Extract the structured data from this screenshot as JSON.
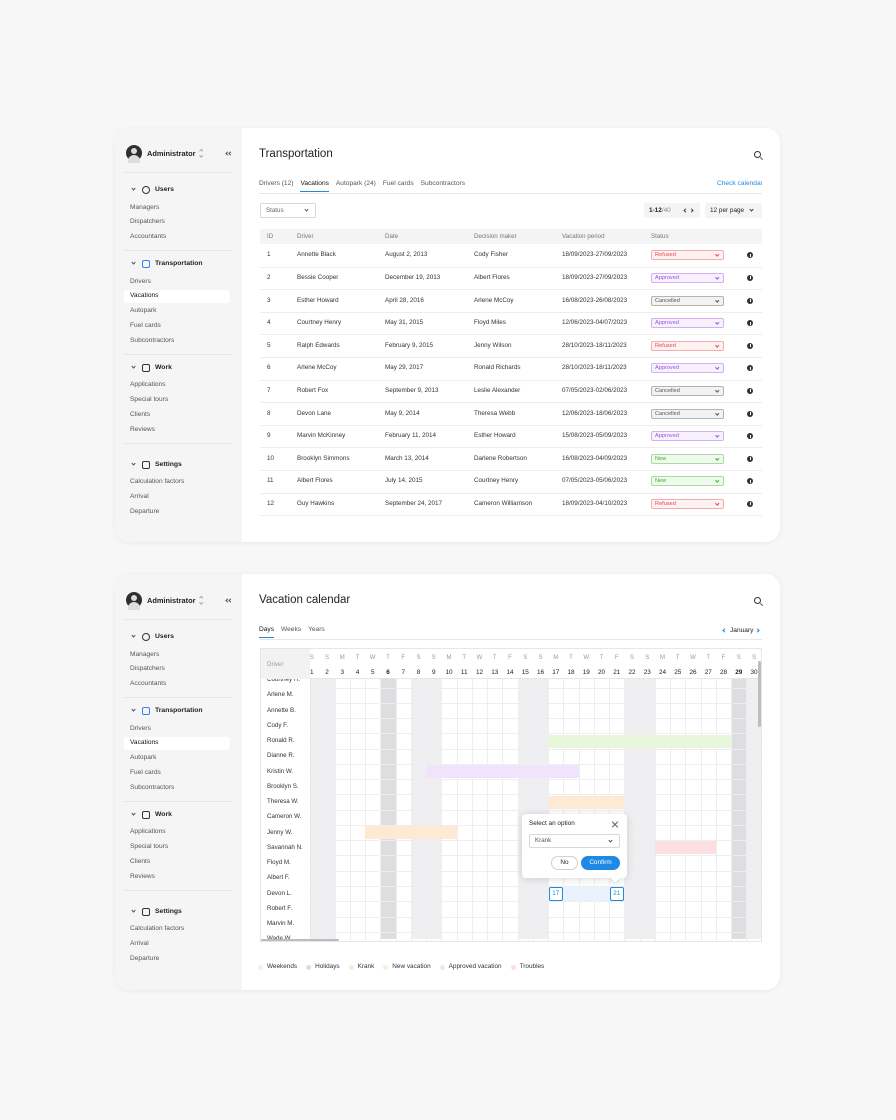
{
  "sidebar": {
    "user": "Administrator",
    "sections": [
      {
        "title": "Users",
        "items": [
          {
            "label": "Managers"
          },
          {
            "label": "Dispatchers"
          },
          {
            "label": "Accountants"
          }
        ]
      },
      {
        "title": "Transportation",
        "items": [
          {
            "label": "Drivers"
          },
          {
            "label": "Vacations",
            "active": true
          },
          {
            "label": "Autopark"
          },
          {
            "label": "Fuel cards"
          },
          {
            "label": "Subcontractors"
          }
        ]
      },
      {
        "title": "Work",
        "items": [
          {
            "label": "Applications"
          },
          {
            "label": "Special tours"
          },
          {
            "label": "Clients"
          },
          {
            "label": "Reviews"
          }
        ]
      },
      {
        "title": "Settings",
        "items": [
          {
            "label": "Calculation factors"
          },
          {
            "label": "Arrival"
          },
          {
            "label": "Departure"
          }
        ]
      }
    ]
  },
  "transportation": {
    "title": "Transportation",
    "tabs": [
      {
        "label": "Drivers (12)"
      },
      {
        "label": "Vacations",
        "active": true
      },
      {
        "label": "Autopark (24)"
      },
      {
        "label": "Fuel cards"
      },
      {
        "label": "Subcontractors"
      }
    ],
    "calendar_link": "Check calendar",
    "status_filter": "Status",
    "pagination": {
      "range": "1-12",
      "total": "/40"
    },
    "per_page": "12 per page",
    "table": {
      "columns": [
        "ID",
        "Driver",
        "Date",
        "Decision maker",
        "Vacation period",
        "Status"
      ],
      "rows": [
        {
          "id": 1,
          "driver": "Annette Black",
          "date": "August 2, 2013",
          "decision_maker": "Cody Fisher",
          "period": "18/09/2023-27/09/2023",
          "status": "Refused",
          "status_color": "#e5484d"
        },
        {
          "id": 2,
          "driver": "Bessie Cooper",
          "date": "December 19, 2013",
          "decision_maker": "Albert Flores",
          "period": "18/09/2023-27/09/2023",
          "status": "Approved",
          "status_color": "#9b51e0"
        },
        {
          "id": 3,
          "driver": "Esther Howard",
          "date": "April 28, 2016",
          "decision_maker": "Arlene McCoy",
          "period": "16/08/2023-26/08/2023",
          "status": "Cancelled",
          "status_color": "#555555"
        },
        {
          "id": 4,
          "driver": "Courtney Henry",
          "date": "May 31, 2015",
          "decision_maker": "Floyd Miles",
          "period": "12/06/2023-04/07/2023",
          "status": "Approved",
          "status_color": "#9b51e0"
        },
        {
          "id": 5,
          "driver": "Ralph Edwards",
          "date": "February 9, 2015",
          "decision_maker": "Jenny Wilson",
          "period": "28/10/2023-18/11/2023",
          "status": "Refused",
          "status_color": "#e5484d"
        },
        {
          "id": 6,
          "driver": "Arlene McCoy",
          "date": "May 29, 2017",
          "decision_maker": "Ronald Richards",
          "period": "28/10/2023-18/11/2023",
          "status": "Approved",
          "status_color": "#9b51e0"
        },
        {
          "id": 7,
          "driver": "Robert Fox",
          "date": "September 9, 2013",
          "decision_maker": "Leslie Alexander",
          "period": "07/05/2023-02/06/2023",
          "status": "Cancelled",
          "status_color": "#555555"
        },
        {
          "id": 8,
          "driver": "Devon Lane",
          "date": "May 9, 2014",
          "decision_maker": "Theresa Webb",
          "period": "12/06/2023-18/06/2023",
          "status": "Cancelled",
          "status_color": "#555555"
        },
        {
          "id": 9,
          "driver": "Marvin McKinney",
          "date": "February 11, 2014",
          "decision_maker": "Esther Howard",
          "period": "15/08/2023-05/09/2023",
          "status": "Approved",
          "status_color": "#9b51e0"
        },
        {
          "id": 10,
          "driver": "Brooklyn Simmons",
          "date": "March 13, 2014",
          "decision_maker": "Darlene Robertson",
          "period": "16/08/2023-04/09/2023",
          "status": "New",
          "status_color": "#3fae2a"
        },
        {
          "id": 11,
          "driver": "Albert Flores",
          "date": "July 14, 2015",
          "decision_maker": "Courtney Henry",
          "period": "07/05/2023-05/06/2023",
          "status": "New",
          "status_color": "#3fae2a"
        },
        {
          "id": 12,
          "driver": "Guy Hawkins",
          "date": "September 24, 2017",
          "decision_maker": "Cameron Williamson",
          "period": "18/09/2023-04/10/2023",
          "status": "Refused",
          "status_color": "#e5484d"
        }
      ]
    }
  },
  "calendar": {
    "title": "Vacation calendar",
    "tabs": [
      {
        "label": "Days",
        "active": true
      },
      {
        "label": "Weeks"
      },
      {
        "label": "Years"
      }
    ],
    "month": "January",
    "driver_header": "Driver",
    "weekdays": [
      "S",
      "S",
      "M",
      "T",
      "W",
      "T",
      "F",
      "S",
      "S",
      "M",
      "T",
      "W",
      "T",
      "F",
      "S",
      "S",
      "M",
      "T",
      "W",
      "T",
      "F",
      "S",
      "S",
      "M",
      "T",
      "W",
      "T",
      "F",
      "S",
      "S"
    ],
    "days": [
      1,
      2,
      3,
      4,
      5,
      6,
      7,
      8,
      9,
      10,
      11,
      12,
      13,
      14,
      15,
      16,
      17,
      18,
      19,
      20,
      21,
      22,
      23,
      24,
      25,
      26,
      27,
      28,
      29,
      30
    ],
    "day_kinds": [
      "weekend",
      "weekend",
      "workday",
      "workday",
      "workday",
      "holiday",
      "workday",
      "weekend",
      "weekend",
      "workday",
      "workday",
      "workday",
      "workday",
      "workday",
      "weekend",
      "weekend",
      "workday",
      "workday",
      "workday",
      "workday",
      "workday",
      "weekend",
      "weekend",
      "workday",
      "workday",
      "workday",
      "workday",
      "workday",
      "holiday",
      "weekend"
    ],
    "drivers": [
      "Courtney H.",
      "Arlene M.",
      "Annette B.",
      "Cody F.",
      "Ronald R.",
      "Dianne R.",
      "Kristin W.",
      "Brooklyn S.",
      "Theresa W.",
      "Cameron W.",
      "Jenny W.",
      "Savannah N.",
      "Floyd M.",
      "Albert F.",
      "Devon L.",
      "Robert F.",
      "Marvin M.",
      "Wade W."
    ],
    "vacations": [
      {
        "driver_index": 4,
        "start": 17,
        "end": 28,
        "legend_index": 3
      },
      {
        "driver_index": 6,
        "start": 9,
        "end": 18,
        "legend_index": 4
      },
      {
        "driver_index": 8,
        "start": 17,
        "end": 21,
        "legend_index": 2
      },
      {
        "driver_index": 10,
        "start": 5,
        "end": 10,
        "legend_index": 2
      },
      {
        "driver_index": 11,
        "start": 24,
        "end": 27,
        "legend_index": 5
      }
    ],
    "selection": {
      "driver_index": 14,
      "start": 17,
      "end": 21
    },
    "popup": {
      "title": "Select an option",
      "option": "Krank",
      "cancel": "No",
      "confirm": "Confirm"
    },
    "legend": [
      {
        "label": "Weekends",
        "color": "#efeff1"
      },
      {
        "label": "Holidays",
        "color": "#dedee1"
      },
      {
        "label": "Krank",
        "color": "#fde9d4"
      },
      {
        "label": "New vacation",
        "color": "#e8f7dc"
      },
      {
        "label": "Approved vacation",
        "color": "#efe4fc"
      },
      {
        "label": "Troubles",
        "color": "#fcdfe2"
      }
    ]
  }
}
